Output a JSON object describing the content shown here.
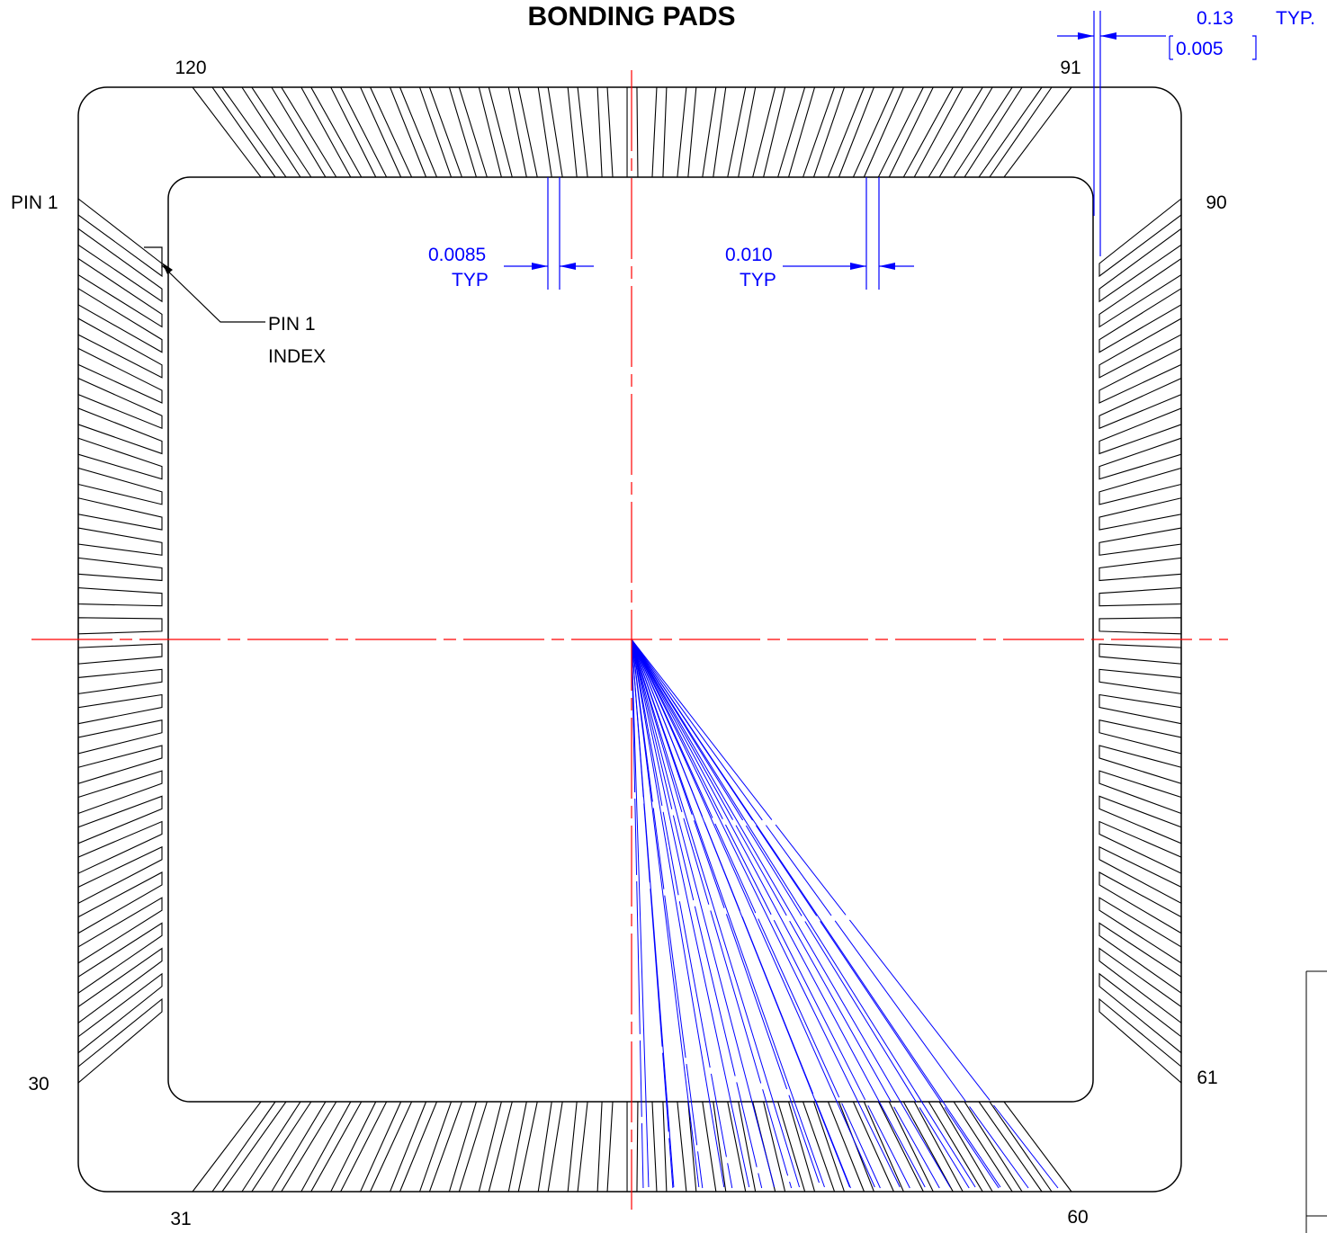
{
  "title": "BONDING PADS",
  "pin_labels": {
    "p120": "120",
    "p91": "91",
    "p90": "90",
    "p61": "61",
    "p60": "60",
    "p31": "31",
    "p30": "30",
    "pin1": "PIN 1"
  },
  "pin1_index": [
    "PIN 1",
    "INDEX"
  ],
  "dimensions": {
    "lead_pitch": {
      "value": "0.13",
      "note": "TYP.",
      "alt": "0.005"
    },
    "pad_a": {
      "value": "0.0085",
      "note": "TYP"
    },
    "pad_b": {
      "value": "0.010",
      "note": "TYP"
    }
  }
}
